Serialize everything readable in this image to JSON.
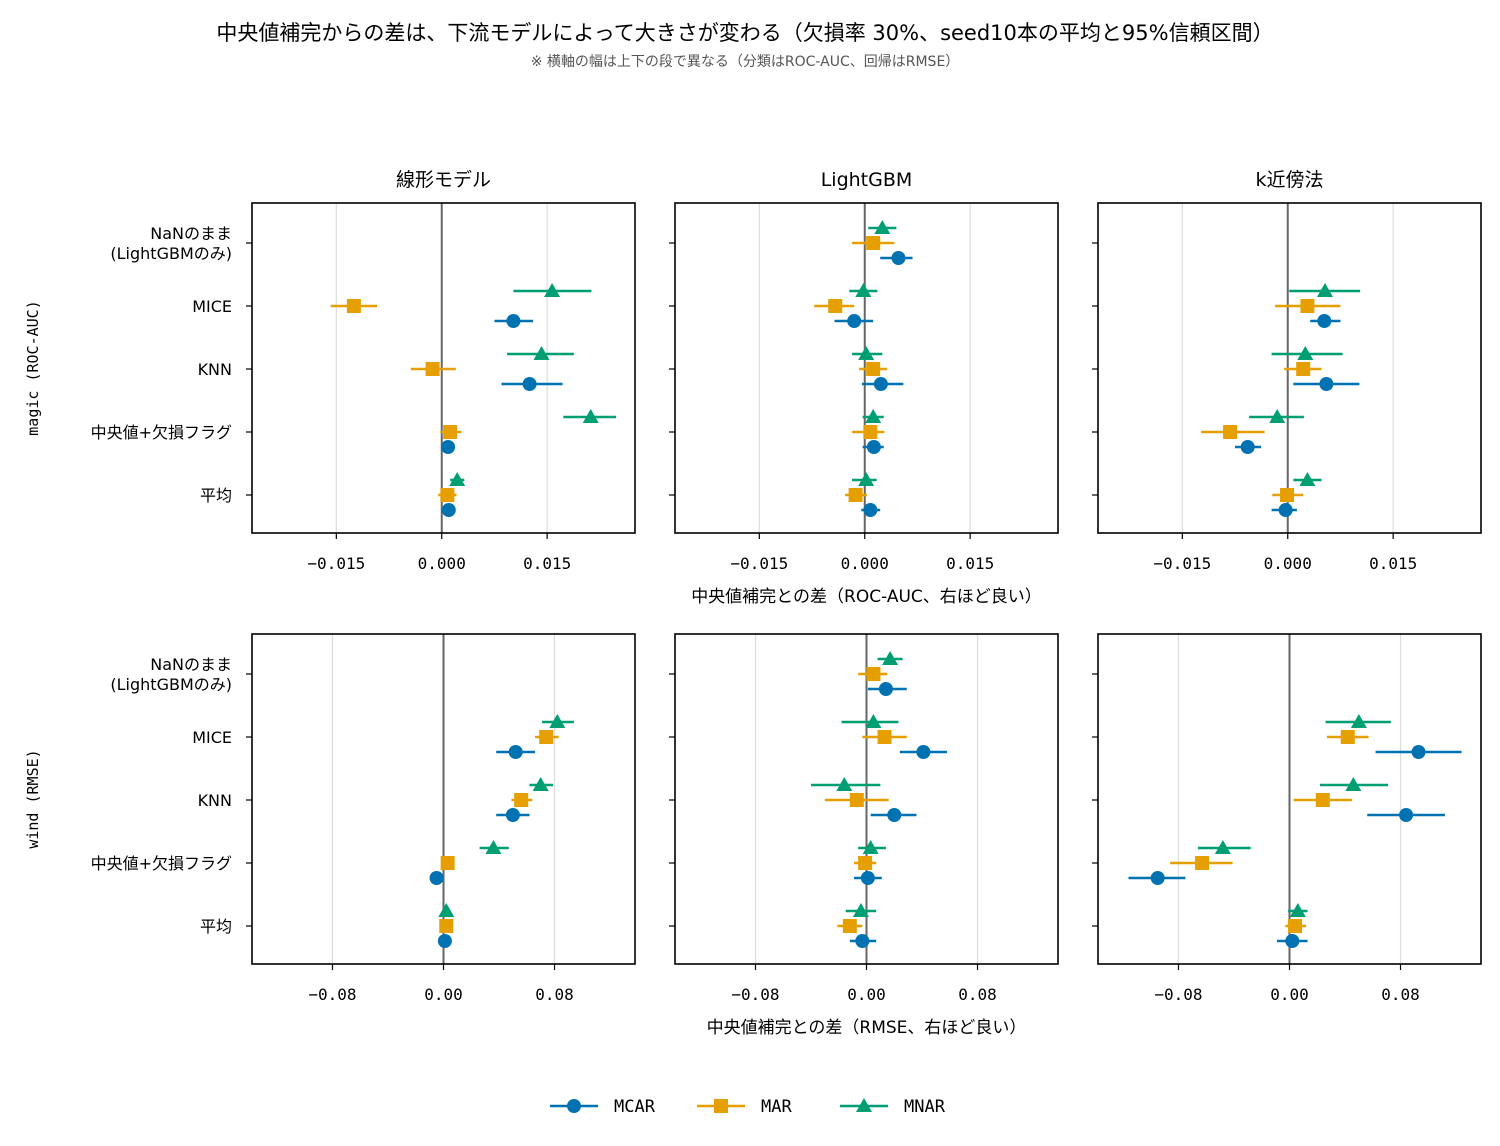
{
  "title": "中央値補完からの差は、下流モデルによって大きさが変わる（欠損率 30%、seed10本の平均と95%信頼区間）",
  "subtitle": "※ 横軸の幅は上下の段で異なる（分類はROC-AUC、回帰はRMSE）",
  "colors": {
    "MCAR": "#0072B2",
    "MAR": "#E69F00",
    "MNAR": "#009E73"
  },
  "legend": {
    "placement": "bottom-center",
    "entries": [
      "MCAR",
      "MAR",
      "MNAR"
    ]
  },
  "chart_data": {
    "type": "scatter",
    "subtype": "dot-errorbar-grid",
    "columns": [
      "線形モデル",
      "LightGBM",
      "k近傍法"
    ],
    "methods": [
      "NaNのまま\n(LightGBMのみ)",
      "MICE",
      "KNN",
      "中央値+欠損フラグ",
      "平均"
    ],
    "series_names": [
      "MCAR",
      "MAR",
      "MNAR"
    ],
    "zero_line": 0,
    "grid": "vertical",
    "rows": [
      {
        "row_label": "magic (ROC-AUC)",
        "xlabel": "中央値補完との差（ROC-AUC、右ほど良い）",
        "xlim": [
          -0.027,
          0.0275
        ],
        "xticks": [
          -0.015,
          0.0,
          0.015
        ],
        "xtick_labels": [
          "−0.015",
          "0.000",
          "0.015"
        ],
        "panels": [
          {
            "MCAR": [
              null,
              {
                "m": 0.0102,
                "lo": 0.0075,
                "hi": 0.013
              },
              {
                "m": 0.0125,
                "lo": 0.0085,
                "hi": 0.0172
              },
              {
                "m": 0.0009,
                "lo": 0.0003,
                "hi": 0.0015
              },
              {
                "m": 0.001,
                "lo": 0.0004,
                "hi": 0.0016
              }
            ],
            "MAR": [
              null,
              {
                "m": -0.0125,
                "lo": -0.0158,
                "hi": -0.0092
              },
              {
                "m": -0.0013,
                "lo": -0.0044,
                "hi": 0.002
              },
              {
                "m": 0.0012,
                "lo": -0.0002,
                "hi": 0.0028
              },
              {
                "m": 0.0008,
                "lo": -0.0005,
                "hi": 0.0021
              }
            ],
            "MNAR": [
              null,
              {
                "m": 0.0157,
                "lo": 0.0102,
                "hi": 0.0213
              },
              {
                "m": 0.0142,
                "lo": 0.0093,
                "hi": 0.0188
              },
              {
                "m": 0.0212,
                "lo": 0.0173,
                "hi": 0.0248
              },
              {
                "m": 0.0022,
                "lo": 0.0012,
                "hi": 0.0032
              }
            ]
          },
          {
            "MCAR": [
              {
                "m": 0.0048,
                "lo": 0.0022,
                "hi": 0.0068
              },
              {
                "m": -0.0015,
                "lo": -0.0043,
                "hi": 0.0012
              },
              {
                "m": 0.0023,
                "lo": -0.0004,
                "hi": 0.0055
              },
              {
                "m": 0.0013,
                "lo": -0.0003,
                "hi": 0.0027
              },
              {
                "m": 0.0008,
                "lo": -0.0005,
                "hi": 0.0022
              }
            ],
            "MAR": [
              {
                "m": 0.0012,
                "lo": -0.0018,
                "hi": 0.0042
              },
              {
                "m": -0.0042,
                "lo": -0.0072,
                "hi": -0.0015
              },
              {
                "m": 0.0012,
                "lo": -0.0008,
                "hi": 0.0032
              },
              {
                "m": 0.0008,
                "lo": -0.0018,
                "hi": 0.0028
              },
              {
                "m": -0.0013,
                "lo": -0.0028,
                "hi": 0.0003
              }
            ],
            "MNAR": [
              {
                "m": 0.0025,
                "lo": 0.0005,
                "hi": 0.0045
              },
              {
                "m": -0.0002,
                "lo": -0.0022,
                "hi": 0.0018
              },
              {
                "m": 0.0002,
                "lo": -0.0018,
                "hi": 0.0025
              },
              {
                "m": 0.0012,
                "lo": -0.0003,
                "hi": 0.0027
              },
              {
                "m": 0.0002,
                "lo": -0.0018,
                "hi": 0.0017
              }
            ]
          },
          {
            "MCAR": [
              null,
              {
                "m": 0.0052,
                "lo": 0.0032,
                "hi": 0.0075
              },
              {
                "m": 0.0055,
                "lo": 0.0008,
                "hi": 0.0102
              },
              {
                "m": -0.0057,
                "lo": -0.0075,
                "hi": -0.0038
              },
              {
                "m": -0.0003,
                "lo": -0.0023,
                "hi": 0.0013
              }
            ],
            "MAR": [
              null,
              {
                "m": 0.0028,
                "lo": -0.0018,
                "hi": 0.0075
              },
              {
                "m": 0.0022,
                "lo": -0.0005,
                "hi": 0.0048
              },
              {
                "m": -0.0082,
                "lo": -0.0123,
                "hi": -0.0033
              },
              {
                "m": -0.0001,
                "lo": -0.0022,
                "hi": 0.0022
              }
            ],
            "MNAR": [
              null,
              {
                "m": 0.0053,
                "lo": 0.0002,
                "hi": 0.0103
              },
              {
                "m": 0.0025,
                "lo": -0.0023,
                "hi": 0.0078
              },
              {
                "m": -0.0015,
                "lo": -0.0055,
                "hi": 0.0023
              },
              {
                "m": 0.0028,
                "lo": 0.0008,
                "hi": 0.0048
              }
            ]
          }
        ]
      },
      {
        "row_label": "wind (RMSE)",
        "xlabel": "中央値補完との差（RMSE、右ほど良い）",
        "xlim": [
          -0.138,
          0.138
        ],
        "xticks": [
          -0.08,
          0.0,
          0.08
        ],
        "xtick_labels": [
          "−0.08",
          "0.00",
          "0.08"
        ],
        "panels": [
          {
            "MCAR": [
              null,
              {
                "m": 0.052,
                "lo": 0.038,
                "hi": 0.066
              },
              {
                "m": 0.05,
                "lo": 0.038,
                "hi": 0.062
              },
              {
                "m": -0.005,
                "lo": -0.009,
                "hi": -0.001
              },
              {
                "m": 0.001,
                "lo": -0.002,
                "hi": 0.004
              }
            ],
            "MAR": [
              null,
              {
                "m": 0.074,
                "lo": 0.066,
                "hi": 0.083
              },
              {
                "m": 0.056,
                "lo": 0.049,
                "hi": 0.064
              },
              {
                "m": 0.003,
                "lo": 0.0,
                "hi": 0.006
              },
              {
                "m": 0.002,
                "lo": -0.001,
                "hi": 0.004
              }
            ],
            "MNAR": [
              null,
              {
                "m": 0.082,
                "lo": 0.071,
                "hi": 0.094
              },
              {
                "m": 0.07,
                "lo": 0.062,
                "hi": 0.079
              },
              {
                "m": 0.036,
                "lo": 0.026,
                "hi": 0.047
              },
              {
                "m": 0.002,
                "lo": -0.001,
                "hi": 0.005
              }
            ]
          },
          {
            "MCAR": [
              {
                "m": 0.014,
                "lo": 0.001,
                "hi": 0.029
              },
              {
                "m": 0.041,
                "lo": 0.024,
                "hi": 0.058
              },
              {
                "m": 0.02,
                "lo": 0.003,
                "hi": 0.036
              },
              {
                "m": 0.001,
                "lo": -0.009,
                "hi": 0.011
              },
              {
                "m": -0.003,
                "lo": -0.012,
                "hi": 0.007
              }
            ],
            "MAR": [
              {
                "m": 0.005,
                "lo": -0.006,
                "hi": 0.015
              },
              {
                "m": 0.013,
                "lo": -0.003,
                "hi": 0.029
              },
              {
                "m": -0.007,
                "lo": -0.03,
                "hi": 0.016
              },
              {
                "m": -0.001,
                "lo": -0.009,
                "hi": 0.007
              },
              {
                "m": -0.012,
                "lo": -0.021,
                "hi": -0.003
              }
            ],
            "MNAR": [
              {
                "m": 0.017,
                "lo": 0.008,
                "hi": 0.026
              },
              {
                "m": 0.005,
                "lo": -0.018,
                "hi": 0.023
              },
              {
                "m": -0.016,
                "lo": -0.04,
                "hi": 0.01
              },
              {
                "m": 0.003,
                "lo": -0.006,
                "hi": 0.014
              },
              {
                "m": -0.004,
                "lo": -0.015,
                "hi": 0.007
              }
            ]
          },
          {
            "MCAR": [
              null,
              {
                "m": 0.093,
                "lo": 0.062,
                "hi": 0.124
              },
              {
                "m": 0.084,
                "lo": 0.056,
                "hi": 0.112
              },
              {
                "m": -0.095,
                "lo": -0.116,
                "hi": -0.075
              },
              {
                "m": 0.002,
                "lo": -0.009,
                "hi": 0.013
              }
            ],
            "MAR": [
              null,
              {
                "m": 0.042,
                "lo": 0.027,
                "hi": 0.057
              },
              {
                "m": 0.024,
                "lo": 0.003,
                "hi": 0.045
              },
              {
                "m": -0.063,
                "lo": -0.086,
                "hi": -0.041
              },
              {
                "m": 0.004,
                "lo": -0.003,
                "hi": 0.012
              }
            ],
            "MNAR": [
              null,
              {
                "m": 0.05,
                "lo": 0.026,
                "hi": 0.073
              },
              {
                "m": 0.046,
                "lo": 0.022,
                "hi": 0.071
              },
              {
                "m": -0.048,
                "lo": -0.066,
                "hi": -0.028
              },
              {
                "m": 0.006,
                "lo": -0.001,
                "hi": 0.013
              }
            ]
          }
        ]
      }
    ]
  }
}
